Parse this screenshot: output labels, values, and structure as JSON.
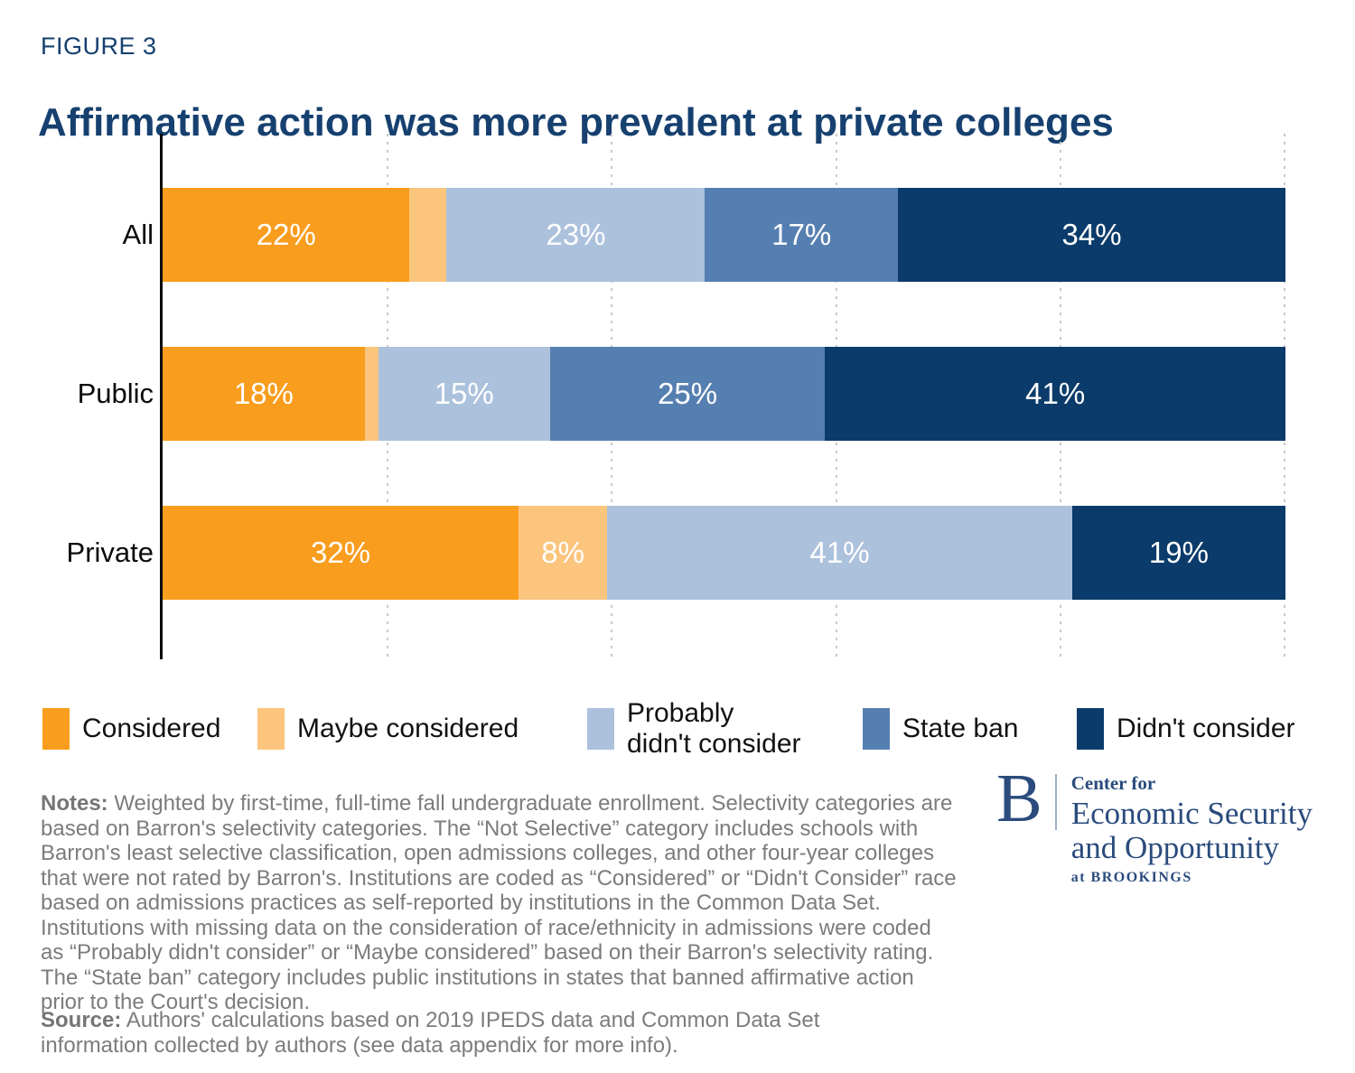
{
  "figure_label": "FIGURE 3",
  "title": "Affirmative action was more prevalent at private colleges",
  "colors": {
    "title_navy": "#16406F",
    "axis_black": "#0a0a0a",
    "gridline_gray": "#c9c9c9",
    "notes_gray": "#7c7c7c",
    "logo_navy": "#2A4B7C"
  },
  "chart_data": {
    "type": "bar",
    "variant": "horizontal-stacked",
    "title": "Affirmative action was more prevalent at private colleges",
    "categories": [
      "Considered",
      "Maybe considered",
      "Probably didn't consider",
      "State ban",
      "Didn't consider"
    ],
    "legend_labels": [
      "Considered",
      "Maybe considered",
      "Probably\ndidn't consider",
      "State ban",
      "Didn't consider"
    ],
    "category_colors": [
      "#F99D1E",
      "#FBC57E",
      "#ACC1DC",
      "#567FB1",
      "#0B3B6A"
    ],
    "x_axis": {
      "min": 0,
      "max": 100,
      "unit": "%",
      "gridlines_percent": [
        20,
        40,
        60,
        80,
        100
      ],
      "gridline_style": "dotted",
      "tick_labels_visible": false
    },
    "legend_position": "bottom",
    "rows": [
      {
        "label": "All",
        "segments": [
          {
            "category": "Considered",
            "value": 22,
            "label": "22%"
          },
          {
            "category": "Maybe considered",
            "value": 3.3,
            "label": ""
          },
          {
            "category": "Probably didn't consider",
            "value": 23,
            "label": "23%"
          },
          {
            "category": "State ban",
            "value": 17.2,
            "label": "17%"
          },
          {
            "category": "Didn't consider",
            "value": 34.5,
            "label": "34%"
          }
        ]
      },
      {
        "label": "Public",
        "segments": [
          {
            "category": "Considered",
            "value": 18,
            "label": "18%"
          },
          {
            "category": "Maybe considered",
            "value": 1.2,
            "label": ""
          },
          {
            "category": "Probably didn't consider",
            "value": 15.3,
            "label": "15%"
          },
          {
            "category": "State ban",
            "value": 24.5,
            "label": "25%"
          },
          {
            "category": "Didn't consider",
            "value": 41,
            "label": "41%"
          }
        ]
      },
      {
        "label": "Private",
        "segments": [
          {
            "category": "Considered",
            "value": 31.7,
            "label": "32%"
          },
          {
            "category": "Maybe considered",
            "value": 7.9,
            "label": "8%"
          },
          {
            "category": "Probably didn't consider",
            "value": 41.4,
            "label": "41%"
          },
          {
            "category": "State ban",
            "value": 0,
            "label": ""
          },
          {
            "category": "Didn't consider",
            "value": 19,
            "label": "19%"
          }
        ]
      }
    ]
  },
  "notes": {
    "label": "Notes:",
    "text": " Weighted by first-time, full-time fall undergraduate enrollment. Selectivity categories are based on Barron's selectivity categories. The “Not Selective” category includes schools with Barron's least selective classification, open admissions colleges, and other four-year colleges that were not rated by Barron's. Institutions are coded as “Considered” or “Didn't Consider” race based on admissions practices as self-reported by institutions in the Common Data Set. Institutions with missing data on the consideration of race/ethnicity in admissions were coded as “Probably didn't consider” or “Maybe considered” based on their Barron's selectivity rating. The “State ban” category includes public institutions in states that banned affirmative action prior to the Court's decision."
  },
  "source": {
    "label": "Source:",
    "text": " Authors' calculations based on 2019 IPEDS data and Common Data Set information collected by authors (see data appendix for more info)."
  },
  "logo": {
    "b": "B",
    "center_for": "Center for",
    "line1": "Economic Security",
    "line2": "and Opportunity",
    "at": "at BROOKINGS"
  }
}
